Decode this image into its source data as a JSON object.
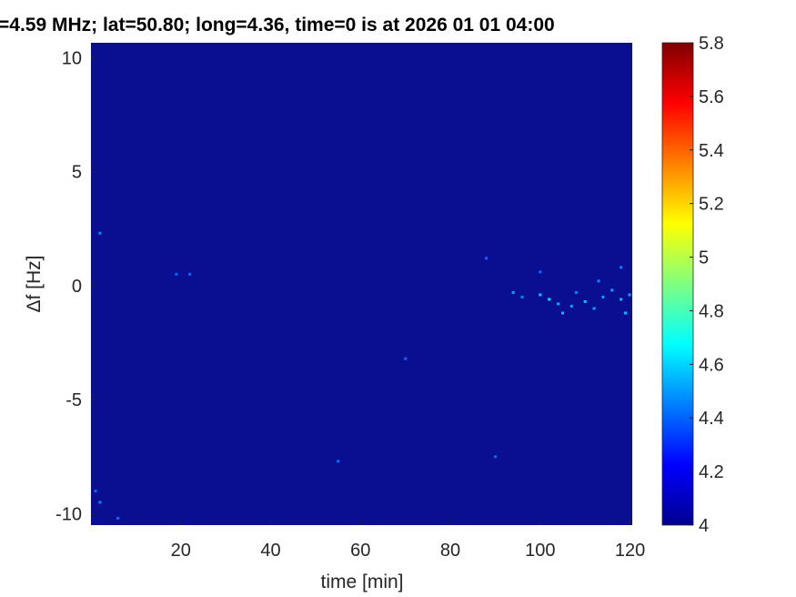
{
  "chart_data": {
    "type": "heatmap",
    "title": "=4.59 MHz;  lat=50.80; long=4.36, time=0 is at 2026 01 01 04:00",
    "xlabel": "time [min]",
    "ylabel": "Δf [Hz]",
    "xlim": [
      0,
      120.5
    ],
    "ylim": [
      -10.5,
      10.65
    ],
    "xticks": [
      20,
      40,
      60,
      80,
      100,
      120
    ],
    "yticks": [
      -10,
      -5,
      0,
      5,
      10
    ],
    "colorbar": {
      "colormap": "jet",
      "clim": [
        4,
        5.8
      ],
      "ticks": [
        4,
        4.2,
        4.4,
        4.6,
        4.8,
        5,
        5.2,
        5.4,
        5.6,
        5.8
      ]
    },
    "background_value": 4.0,
    "hotspots": [
      [
        94,
        -0.3,
        4.3
      ],
      [
        96,
        -0.5,
        4.25
      ],
      [
        100,
        -0.4,
        4.35
      ],
      [
        102,
        -0.6,
        4.4
      ],
      [
        104,
        -0.8,
        4.3
      ],
      [
        105,
        -1.2,
        4.35
      ],
      [
        107,
        -0.9,
        4.3
      ],
      [
        108,
        -0.3,
        4.25
      ],
      [
        110,
        -0.7,
        4.35
      ],
      [
        112,
        -1.0,
        4.3
      ],
      [
        114,
        -0.5,
        4.3
      ],
      [
        116,
        -0.2,
        4.3
      ],
      [
        118,
        -0.6,
        4.35
      ],
      [
        119,
        -1.2,
        4.35
      ],
      [
        121,
        -0.4,
        4.3
      ],
      [
        113,
        0.2,
        4.25
      ],
      [
        2,
        2.3,
        4.25
      ],
      [
        19,
        0.5,
        4.2
      ],
      [
        22,
        0.5,
        4.2
      ],
      [
        88,
        1.2,
        4.2
      ],
      [
        1,
        -9,
        4.2
      ],
      [
        2,
        -9.5,
        4.25
      ],
      [
        6,
        -10.2,
        4.2
      ],
      [
        90,
        -7.5,
        4.2
      ],
      [
        70,
        -3.2,
        4.2
      ],
      [
        55,
        -7.7,
        4.2
      ],
      [
        118,
        0.8,
        4.25
      ],
      [
        100,
        0.6,
        4.2
      ]
    ]
  }
}
